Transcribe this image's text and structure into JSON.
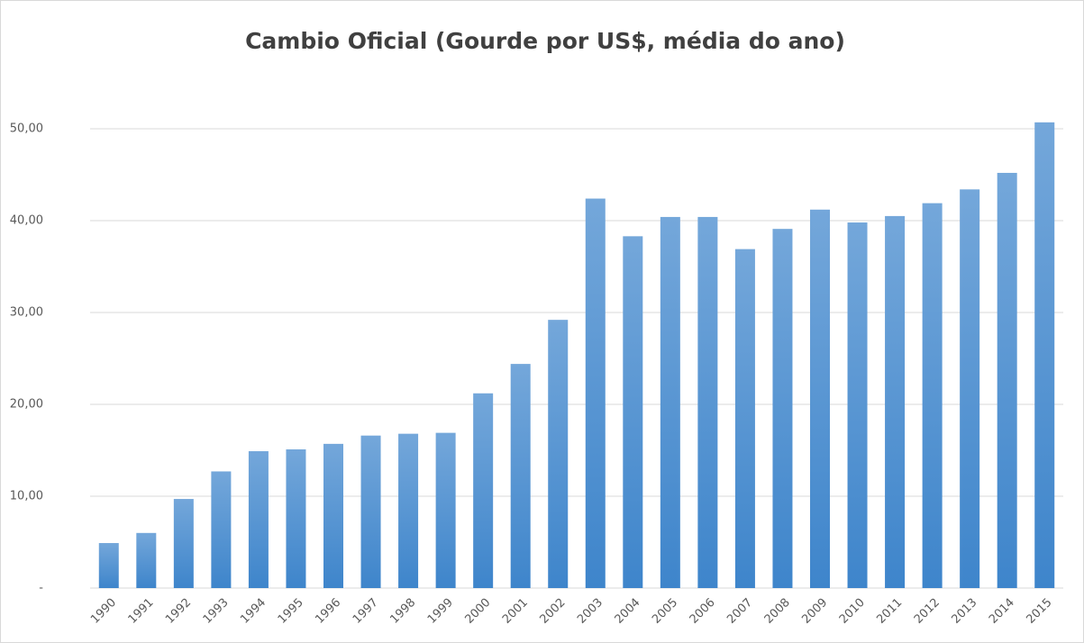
{
  "chart_data": {
    "type": "bar",
    "title": "Cambio Oficial (Gourde por US$, média do ano)",
    "categories": [
      "1990",
      "1991",
      "1992",
      "1993",
      "1994",
      "1995",
      "1996",
      "1997",
      "1998",
      "1999",
      "2000",
      "2001",
      "2002",
      "2003",
      "2004",
      "2005",
      "2006",
      "2007",
      "2008",
      "2009",
      "2010",
      "2011",
      "2012",
      "2013",
      "2014",
      "2015"
    ],
    "values": [
      4.9,
      6.0,
      9.7,
      12.7,
      14.9,
      15.1,
      15.7,
      16.6,
      16.8,
      16.9,
      21.2,
      24.4,
      29.2,
      42.4,
      38.3,
      40.4,
      40.4,
      36.9,
      39.1,
      41.2,
      39.8,
      40.5,
      41.9,
      43.4,
      45.2,
      50.7
    ],
    "color": "#5b9bd5",
    "ylim": [
      0,
      55
    ],
    "yticks": [
      {
        "value": 0,
        "label": "-"
      },
      {
        "value": 10,
        "label": "10,00"
      },
      {
        "value": 20,
        "label": "20,00"
      },
      {
        "value": 30,
        "label": "30,00"
      },
      {
        "value": 40,
        "label": "40,00"
      },
      {
        "value": 50,
        "label": "50,00"
      }
    ],
    "grid": true
  }
}
